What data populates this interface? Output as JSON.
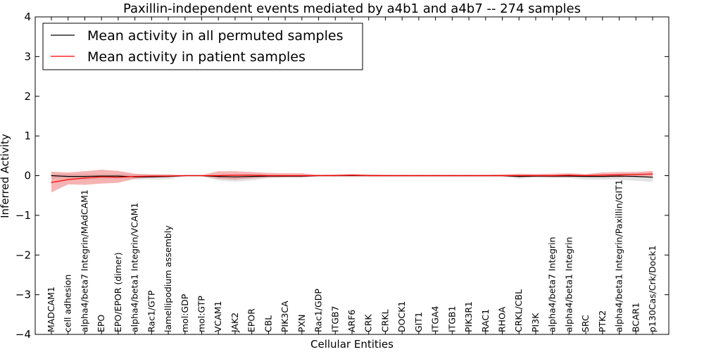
{
  "chart_data": {
    "type": "line",
    "title": "Paxillin-independent events mediated by a4b1 and a4b7 -- 274 samples",
    "xlabel": "Cellular Entities",
    "ylabel": "Inferred Activity",
    "ylim": [
      -4,
      4
    ],
    "yticks": [
      4,
      3,
      2,
      1,
      0,
      -1,
      -2,
      -3,
      -4
    ],
    "ytick_labels": [
      "4",
      "3",
      "2",
      "1",
      "0",
      "−1",
      "−2",
      "−3",
      "−4"
    ],
    "legend_position": "top-left",
    "categories": [
      "MADCAM1",
      "cell adhesion",
      "alpha4/beta7 Integrin/MAdCAM1",
      "EPO",
      "EPO/EPOR (dimer)",
      "alpha4/beta1 Integrin/VCAM1",
      "Rac1/GTP",
      "lamellipodium assembly",
      "mol:GDP",
      "mol:GTP",
      "VCAM1",
      "JAK2",
      "EPOR",
      "CBL",
      "PIK3CA",
      "PXN",
      "Rac1/GDP",
      "ITGB7",
      "ARF6",
      "CRK",
      "CRKL",
      "DOCK1",
      "GIT1",
      "ITGA4",
      "ITGB1",
      "PIK3R1",
      "RAC1",
      "RHOA",
      "CRKL/CBL",
      "PI3K",
      "alpha4/beta7 Integrin",
      "alpha4/beta1 Integrin",
      "SRC",
      "PTK2",
      "alpha4/beta1 Integrin/Paxillin/GIT1",
      "BCAR1",
      "p130Cas/Crk/Dock1"
    ],
    "series": [
      {
        "name": "Mean activity in all permuted samples",
        "color": "#000000",
        "band_color": "#cccccc",
        "values": [
          0.0,
          -0.02,
          -0.02,
          -0.01,
          -0.01,
          -0.03,
          -0.03,
          -0.02,
          0.0,
          0.0,
          -0.02,
          -0.03,
          -0.02,
          -0.01,
          -0.01,
          -0.01,
          0.0,
          0.0,
          0.0,
          0.0,
          0.0,
          0.0,
          0.0,
          0.0,
          0.0,
          0.0,
          0.0,
          0.0,
          -0.02,
          -0.01,
          -0.01,
          -0.01,
          -0.02,
          -0.02,
          -0.01,
          -0.02,
          -0.04
        ],
        "upper": [
          0.05,
          0.04,
          0.04,
          0.04,
          0.05,
          0.03,
          0.03,
          0.03,
          0.02,
          0.02,
          0.03,
          0.03,
          0.03,
          0.03,
          0.03,
          0.03,
          0.02,
          0.02,
          0.02,
          0.02,
          0.02,
          0.02,
          0.02,
          0.02,
          0.02,
          0.02,
          0.02,
          0.02,
          0.03,
          0.03,
          0.03,
          0.03,
          0.03,
          0.04,
          0.05,
          0.06,
          0.08
        ],
        "lower": [
          -0.08,
          -0.08,
          -0.1,
          -0.09,
          -0.08,
          -0.09,
          -0.1,
          -0.09,
          -0.02,
          -0.02,
          -0.12,
          -0.15,
          -0.12,
          -0.06,
          -0.05,
          -0.05,
          -0.02,
          -0.02,
          -0.02,
          -0.02,
          -0.02,
          -0.02,
          -0.02,
          -0.02,
          -0.02,
          -0.02,
          -0.02,
          -0.02,
          -0.08,
          -0.05,
          -0.06,
          -0.06,
          -0.1,
          -0.1,
          -0.1,
          -0.13,
          -0.16
        ]
      },
      {
        "name": "Mean activity in patient samples",
        "color": "#ff0000",
        "band_color": "#f08080",
        "values": [
          -0.17,
          -0.1,
          -0.06,
          -0.03,
          -0.04,
          -0.02,
          -0.01,
          -0.01,
          0.0,
          0.0,
          0.0,
          0.01,
          0.01,
          0.0,
          0.0,
          0.0,
          0.0,
          0.0,
          0.01,
          0.0,
          0.0,
          0.0,
          0.0,
          0.0,
          0.0,
          0.0,
          0.0,
          0.0,
          0.0,
          0.0,
          0.0,
          0.01,
          0.0,
          0.01,
          0.02,
          0.03,
          0.04
        ],
        "upper": [
          0.1,
          0.08,
          0.11,
          0.15,
          0.12,
          0.05,
          0.03,
          0.03,
          0.01,
          0.01,
          0.11,
          0.11,
          0.09,
          0.07,
          0.06,
          0.06,
          0.02,
          0.03,
          0.04,
          0.03,
          0.02,
          0.02,
          0.02,
          0.02,
          0.02,
          0.02,
          0.02,
          0.03,
          0.05,
          0.04,
          0.05,
          0.06,
          0.04,
          0.08,
          0.09,
          0.09,
          0.12
        ],
        "lower": [
          -0.42,
          -0.22,
          -0.23,
          -0.2,
          -0.18,
          -0.08,
          -0.05,
          -0.04,
          -0.01,
          -0.01,
          -0.08,
          -0.1,
          -0.07,
          -0.05,
          -0.04,
          -0.04,
          -0.01,
          -0.02,
          -0.02,
          -0.02,
          -0.02,
          -0.02,
          -0.02,
          -0.02,
          -0.02,
          -0.02,
          -0.02,
          -0.02,
          -0.04,
          -0.03,
          -0.04,
          -0.04,
          -0.03,
          -0.04,
          -0.04,
          -0.03,
          -0.02
        ]
      }
    ]
  }
}
